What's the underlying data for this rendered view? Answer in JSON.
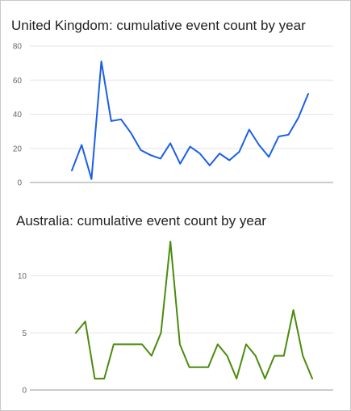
{
  "chart_data": [
    {
      "type": "line",
      "title": "United Kingdom: cumulative event count by year",
      "color": "#1a5fe8",
      "ylim": [
        0,
        80
      ],
      "yticks": [
        0,
        20,
        40,
        60,
        80
      ],
      "grid": true,
      "values": [
        7,
        22,
        2,
        71,
        36,
        37,
        29,
        19,
        16,
        14,
        23,
        11,
        21,
        17,
        10,
        17,
        13,
        18,
        31,
        22,
        15,
        27,
        28,
        38,
        52
      ]
    },
    {
      "type": "line",
      "title": "Australia: cumulative event count by year",
      "color": "#4a8c0c",
      "ylim": [
        0,
        14
      ],
      "yticks": [
        0,
        5,
        10
      ],
      "grid": true,
      "values": [
        5,
        6,
        1,
        1,
        4,
        4,
        4,
        4,
        3,
        5,
        13,
        4,
        2,
        2,
        2,
        4,
        3,
        1,
        4,
        3,
        1,
        3,
        3,
        7,
        3,
        1
      ]
    }
  ]
}
